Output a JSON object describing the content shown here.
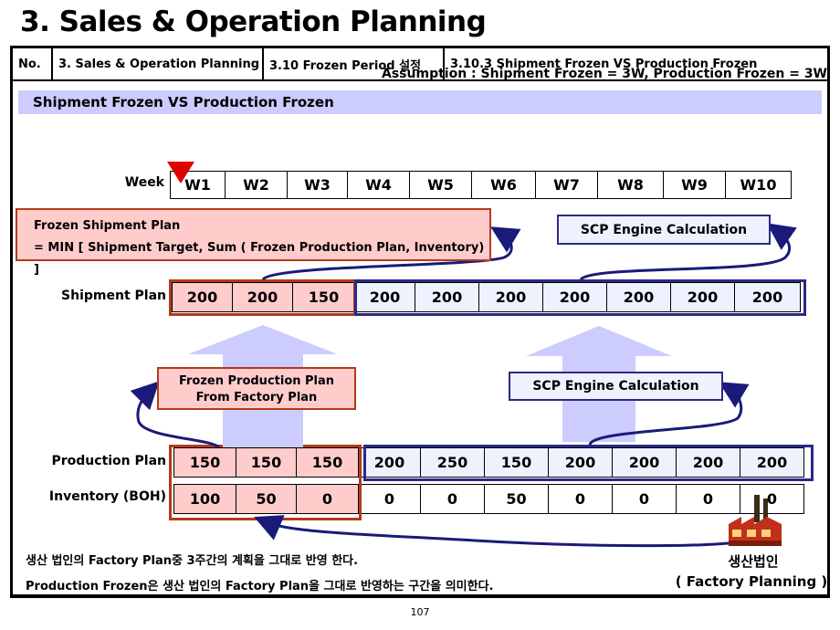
{
  "title": "3. Sales & Operation Planning",
  "header": {
    "no": "No.",
    "section": "3. Sales & Operation Planning",
    "subsection": "3.10 Frozen Period 설정",
    "topic": "3.10.3 Shipment Frozen VS Production Frozen"
  },
  "subtitle": "Shipment Frozen VS Production Frozen",
  "assumption": "Assumption : Shipment Frozen = 3W, Production Frozen = 3W",
  "week_label": "Week",
  "weeks": [
    "W1",
    "W2",
    "W3",
    "W4",
    "W5",
    "W6",
    "W7",
    "W8",
    "W9",
    "W10"
  ],
  "rows": {
    "shipment": {
      "label": "Shipment Plan",
      "values": [
        "200",
        "200",
        "150",
        "200",
        "200",
        "200",
        "200",
        "200",
        "200",
        "200"
      ]
    },
    "production": {
      "label": "Production Plan",
      "values": [
        "150",
        "150",
        "150",
        "200",
        "250",
        "150",
        "200",
        "200",
        "200",
        "200"
      ]
    },
    "inventory": {
      "label": "Inventory (BOH)",
      "values": [
        "100",
        "50",
        "0",
        "0",
        "0",
        "50",
        "0",
        "0",
        "0",
        "0"
      ]
    }
  },
  "boxes": {
    "frozen_shipment_line1": "Frozen Shipment Plan",
    "frozen_shipment_line2": "= MIN [ Shipment Target, Sum ( Frozen Production Plan, Inventory) ]",
    "scp_top": "SCP Engine Calculation",
    "frozen_production_line1": "Frozen Production Plan",
    "frozen_production_line2": "From Factory Plan",
    "scp_bottom": "SCP Engine Calculation"
  },
  "notes": {
    "line1": "생산 법인의 Factory Plan중 3주간의 계획을 그대로 반영 한다.",
    "line2": "Production Frozen은 생산 법인의 Factory Plan을 그대로 반영하는 구간을 의미한다."
  },
  "factory": {
    "label1": "생산법인",
    "label2": "( Factory Planning )"
  },
  "page_number": "107",
  "colors": {
    "frozen_fill": "#ffcccc",
    "frozen_border": "#b33a1a",
    "engine_border": "#2a2a88",
    "engine_fill": "#eef2ff",
    "arrow": "#ccccff",
    "band": "#ccccff",
    "marker": "#e00000"
  }
}
